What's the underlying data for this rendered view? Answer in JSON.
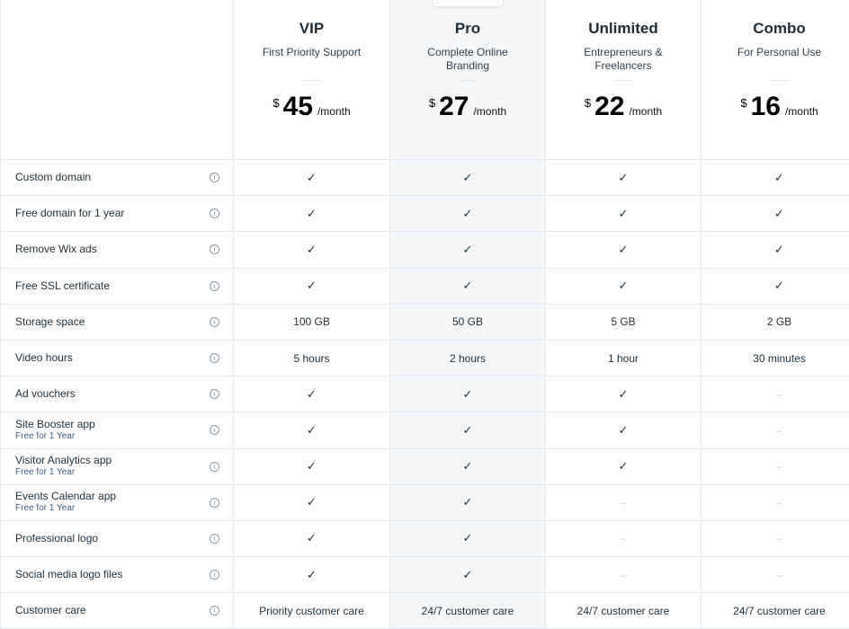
{
  "plans": [
    {
      "name": "VIP",
      "tagline": "First Priority Support",
      "currency": "$",
      "price": "45",
      "period": "/month"
    },
    {
      "name": "Pro",
      "tagline": "Complete Online Branding",
      "currency": "$",
      "price": "27",
      "period": "/month"
    },
    {
      "name": "Unlimited",
      "tagline": "Entrepreneurs & Freelancers",
      "currency": "$",
      "price": "22",
      "period": "/month"
    },
    {
      "name": "Combo",
      "tagline": "For Personal Use",
      "currency": "$",
      "price": "16",
      "period": "/month"
    }
  ],
  "features": [
    {
      "label": "Custom domain",
      "sub": "",
      "values": [
        "✓",
        "✓",
        "✓",
        "✓"
      ]
    },
    {
      "label": "Free domain for 1 year",
      "sub": "",
      "values": [
        "✓",
        "✓",
        "✓",
        "✓"
      ]
    },
    {
      "label": "Remove Wix ads",
      "sub": "",
      "values": [
        "✓",
        "✓",
        "✓",
        "✓"
      ]
    },
    {
      "label": "Free SSL certificate",
      "sub": "",
      "values": [
        "✓",
        "✓",
        "✓",
        "✓"
      ]
    },
    {
      "label": "Storage space",
      "sub": "",
      "values": [
        "100 GB",
        "50 GB",
        "5 GB",
        "2 GB"
      ]
    },
    {
      "label": "Video hours",
      "sub": "",
      "values": [
        "5 hours",
        "2 hours",
        "1 hour",
        "30 minutes"
      ]
    },
    {
      "label": "Ad vouchers",
      "sub": "",
      "values": [
        "✓",
        "✓",
        "✓",
        "–"
      ]
    },
    {
      "label": "Site Booster app",
      "sub": "Free for 1 Year",
      "values": [
        "✓",
        "✓",
        "✓",
        "–"
      ]
    },
    {
      "label": "Visitor Analytics app",
      "sub": "Free for 1 Year",
      "values": [
        "✓",
        "✓",
        "✓",
        "–"
      ]
    },
    {
      "label": "Events Calendar app",
      "sub": "Free for 1 Year",
      "values": [
        "✓",
        "✓",
        "–",
        "–"
      ]
    },
    {
      "label": "Professional logo",
      "sub": "",
      "values": [
        "✓",
        "✓",
        "–",
        "–"
      ]
    },
    {
      "label": "Social media logo files",
      "sub": "",
      "values": [
        "✓",
        "✓",
        "–",
        "–"
      ]
    },
    {
      "label": "Customer care",
      "sub": "",
      "values": [
        "Priority customer care",
        "24/7 customer care",
        "24/7 customer care",
        "24/7 customer care"
      ]
    }
  ],
  "info_icon": "i"
}
